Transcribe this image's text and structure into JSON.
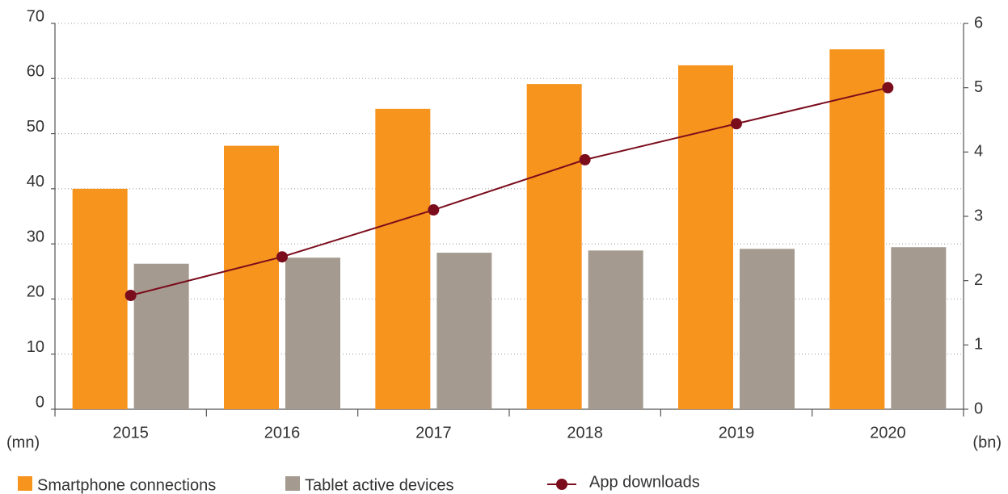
{
  "chart_data": {
    "type": "bar",
    "categories": [
      "2015",
      "2016",
      "2017",
      "2018",
      "2019",
      "2020"
    ],
    "series": [
      {
        "name": "Smartphone connections",
        "color": "#f7941d",
        "values": [
          40,
          47.8,
          54.5,
          59,
          62.4,
          65.3
        ]
      },
      {
        "name": "Tablet active devices",
        "color": "#a59a8f",
        "values": [
          26.4,
          27.5,
          28.4,
          28.8,
          29.1,
          29.4
        ]
      },
      {
        "name": "App downloads",
        "color": "#7b0c1c",
        "type": "line",
        "axis": "y2",
        "values": [
          1.77,
          2.37,
          3.1,
          3.88,
          4.44,
          5.0
        ]
      }
    ],
    "ylabel": "(mn)",
    "y2label": "(bn)",
    "ylim": [
      0,
      70
    ],
    "yticks": [
      0,
      10,
      20,
      30,
      40,
      50,
      60,
      70
    ],
    "y2lim": [
      0,
      6
    ],
    "y2ticks": [
      0,
      1,
      2,
      3,
      4,
      5,
      6
    ],
    "grid": true,
    "legend": "bottom"
  }
}
